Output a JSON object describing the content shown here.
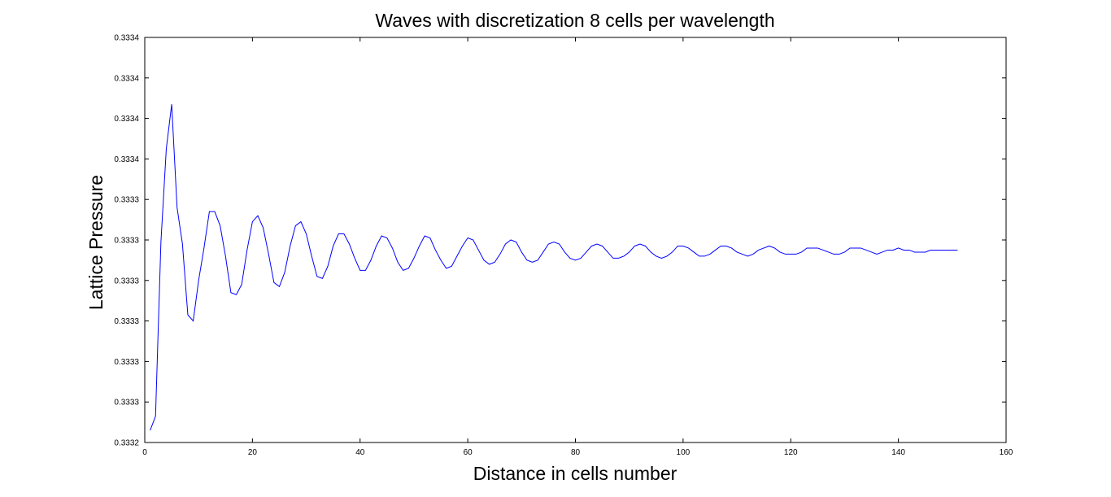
{
  "chart_data": {
    "type": "line",
    "title": "Waves with discretization 8 cells per wavelength",
    "xlabel": "Distance in cells number",
    "ylabel": "Lattice Pressure",
    "xlim": [
      0,
      160
    ],
    "ylim": [
      0.33324,
      0.33344
    ],
    "x_ticks": [
      0,
      20,
      40,
      60,
      80,
      100,
      120,
      140,
      160
    ],
    "x_tick_labels": [
      "0",
      "20",
      "40",
      "60",
      "80",
      "100",
      "120",
      "140",
      "160"
    ],
    "y_ticks": [
      0.33324,
      0.33326,
      0.33328,
      0.3333,
      0.33332,
      0.33334,
      0.33336,
      0.33338,
      0.3334,
      0.33342,
      0.33344
    ],
    "y_tick_labels": [
      "0.3332",
      "0.3333",
      "0.3333",
      "0.3333",
      "0.3333",
      "0.3333",
      "0.3333",
      "0.3334",
      "0.3334",
      "0.3334",
      "0.3334"
    ],
    "grid": false,
    "line_color": "#0000ff",
    "series": [
      {
        "x": [
          1,
          2,
          3,
          4,
          5,
          6,
          7,
          8,
          9,
          10,
          11,
          12,
          13,
          14,
          15,
          16,
          17,
          18,
          19,
          20,
          21,
          22,
          23,
          24,
          25,
          26,
          27,
          28,
          29,
          30,
          31,
          32,
          33,
          34,
          35,
          36,
          37,
          38,
          39,
          40,
          41,
          42,
          43,
          44,
          45,
          46,
          47,
          48,
          49,
          50,
          51,
          52,
          53,
          54,
          55,
          56,
          57,
          58,
          59,
          60,
          61,
          62,
          63,
          64,
          65,
          66,
          67,
          68,
          69,
          70,
          71,
          72,
          73,
          74,
          75,
          76,
          77,
          78,
          79,
          80,
          81,
          82,
          83,
          84,
          85,
          86,
          87,
          88,
          89,
          90,
          91,
          92,
          93,
          94,
          95,
          96,
          97,
          98,
          99,
          100,
          101,
          102,
          103,
          104,
          105,
          106,
          107,
          108,
          109,
          110,
          111,
          112,
          113,
          114,
          115,
          116,
          117,
          118,
          119,
          120,
          121,
          122,
          123,
          124,
          125,
          126,
          127,
          128,
          129,
          130,
          131,
          132,
          133,
          134,
          135,
          136,
          137,
          138,
          139,
          140,
          141,
          142,
          143,
          144,
          145,
          146,
          147,
          148,
          149,
          150,
          151
        ],
        "values": [
          0.333246,
          0.333253,
          0.333339,
          0.333385,
          0.333407,
          0.333356,
          0.333338,
          0.333303,
          0.3333,
          0.33332,
          0.333336,
          0.333354,
          0.333354,
          0.333347,
          0.333332,
          0.333314,
          0.333313,
          0.333318,
          0.333335,
          0.333349,
          0.333352,
          0.333346,
          0.333333,
          0.333319,
          0.333317,
          0.333324,
          0.333337,
          0.333347,
          0.333349,
          0.333343,
          0.333332,
          0.333322,
          0.333321,
          0.333327,
          0.333337,
          0.333343,
          0.333343,
          0.333338,
          0.333331,
          0.333325,
          0.333325,
          0.33333,
          0.333337,
          0.333342,
          0.333341,
          0.333336,
          0.333329,
          0.333325,
          0.333326,
          0.333331,
          0.333337,
          0.333342,
          0.333341,
          0.333335,
          0.33333,
          0.333326,
          0.333327,
          0.333332,
          0.333337,
          0.333341,
          0.33334,
          0.333335,
          0.33333,
          0.333328,
          0.333329,
          0.333333,
          0.333338,
          0.33334,
          0.333339,
          0.333334,
          0.33333,
          0.333329,
          0.33333,
          0.333334,
          0.333338,
          0.333339,
          0.333338,
          0.333334,
          0.333331,
          0.33333,
          0.333331,
          0.333334,
          0.333337,
          0.333338,
          0.333337,
          0.333334,
          0.333331,
          0.333331,
          0.333332,
          0.333334,
          0.333337,
          0.333338,
          0.333337,
          0.333334,
          0.333332,
          0.333331,
          0.333332,
          0.333334,
          0.333337,
          0.333337,
          0.333336,
          0.333334,
          0.333332,
          0.333332,
          0.333333,
          0.333335,
          0.333337,
          0.333337,
          0.333336,
          0.333334,
          0.333333,
          0.333332,
          0.333333,
          0.333335,
          0.333336,
          0.333337,
          0.333336,
          0.333334,
          0.333333,
          0.333333,
          0.333333,
          0.333334,
          0.333336,
          0.333336,
          0.333336,
          0.333335,
          0.333334,
          0.333333,
          0.333333,
          0.333334,
          0.333336,
          0.333336,
          0.333336,
          0.333335,
          0.333334,
          0.333333,
          0.333334,
          0.333335,
          0.333335,
          0.333336,
          0.333335,
          0.333335,
          0.333334,
          0.333334,
          0.333334,
          0.333335,
          0.333335,
          0.333335,
          0.333335,
          0.333335,
          0.333335
        ]
      }
    ]
  }
}
